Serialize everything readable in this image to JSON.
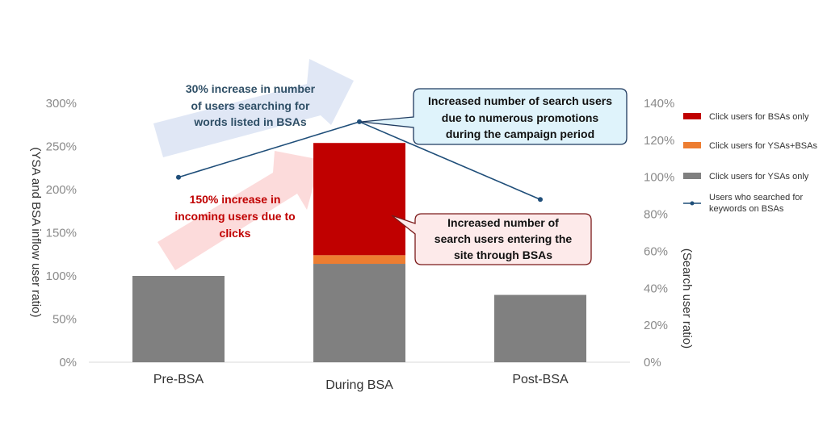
{
  "chart_data": {
    "type": "bar",
    "categories": [
      "Pre-BSA",
      "During BSA",
      "Post-BSA"
    ],
    "series": [
      {
        "name": "Click users for YSAs only",
        "values": [
          100,
          114,
          78
        ],
        "color": "#808080",
        "axis": "left"
      },
      {
        "name": "Click users for YSAs+BSAs",
        "values": [
          0,
          10,
          0
        ],
        "color": "#ed7d31",
        "axis": "left"
      },
      {
        "name": "Click users for BSAs only",
        "values": [
          0,
          130,
          0
        ],
        "color": "#c00000",
        "axis": "left"
      },
      {
        "name": "Users who searched for keywords on BSAs",
        "type": "line",
        "values": [
          100,
          130,
          88
        ],
        "color": "#1f4e79",
        "axis": "right"
      }
    ],
    "stacked": true,
    "ylabel": "(YSA and BSA inflow user ratio)",
    "ylabel_right": "(Search user ratio)",
    "ylim": [
      0,
      300
    ],
    "ylim_right": [
      0,
      140
    ],
    "yticks": [
      "0%",
      "50%",
      "100%",
      "150%",
      "200%",
      "250%",
      "300%"
    ],
    "yticks_right": [
      "0%",
      "20%",
      "40%",
      "60%",
      "80%",
      "100%",
      "120%",
      "140%"
    ],
    "legend_position": "right",
    "legend_order": [
      "Click users for BSAs only",
      "Click users for YSAs+BSAs",
      "Click users for YSAs only",
      "Users who searched for keywords on BSAs"
    ],
    "grid": false,
    "annotations": {
      "blue_arrow": [
        "30% increase in number",
        "of users searching for",
        "words listed in BSAs"
      ],
      "red_arrow": [
        "150% increase in",
        "incoming users due to",
        "clicks"
      ],
      "callout_search": [
        "Increased number of search users",
        "due to numerous promotions",
        "during the campaign period"
      ],
      "callout_bsa": [
        "Increased number of",
        "search users entering the",
        "site through BSAs"
      ]
    }
  }
}
